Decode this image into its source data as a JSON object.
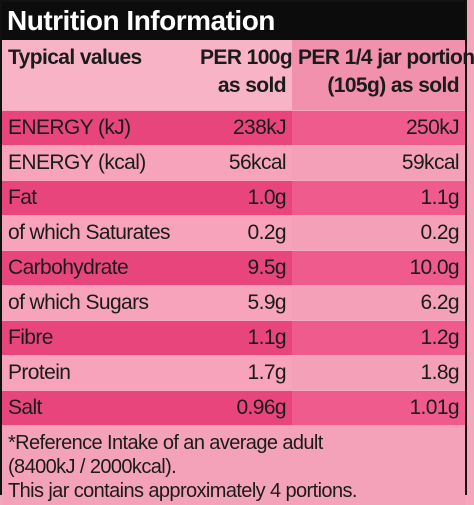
{
  "title": "Nutrition Information",
  "headers": {
    "col1": "Typical values",
    "col2_line1": "PER 100g",
    "col2_line2": "as sold",
    "col3_line1": "PER 1/4 jar portion",
    "col3_line2": "(105g) as sold"
  },
  "rows": [
    {
      "name": "ENERGY (kJ)",
      "per100": "238kJ",
      "portion": "250kJ"
    },
    {
      "name": "ENERGY (kcal)",
      "per100": "56kcal",
      "portion": "59kcal"
    },
    {
      "name": "Fat",
      "per100": "1.0g",
      "portion": "1.1g"
    },
    {
      "name": "of which Saturates",
      "per100": "0.2g",
      "portion": "0.2g"
    },
    {
      "name": "Carbohydrate",
      "per100": "9.5g",
      "portion": "10.0g"
    },
    {
      "name": "of which Sugars",
      "per100": "5.9g",
      "portion": "6.2g"
    },
    {
      "name": "Fibre",
      "per100": "1.1g",
      "portion": "1.2g"
    },
    {
      "name": "Protein",
      "per100": "1.7g",
      "portion": "1.8g"
    },
    {
      "name": "Salt",
      "per100": "0.96g",
      "portion": "1.01g"
    }
  ],
  "footer": {
    "reference_line1": "*Reference Intake of an average adult",
    "reference_line2": "(8400kJ / 2000kcal).",
    "portions": "This jar contains approximately 4 portions."
  },
  "colors": {
    "dark_row": "#e9457d",
    "light_row": "#f6a3bb",
    "title_bar": "#0c0c0c"
  }
}
